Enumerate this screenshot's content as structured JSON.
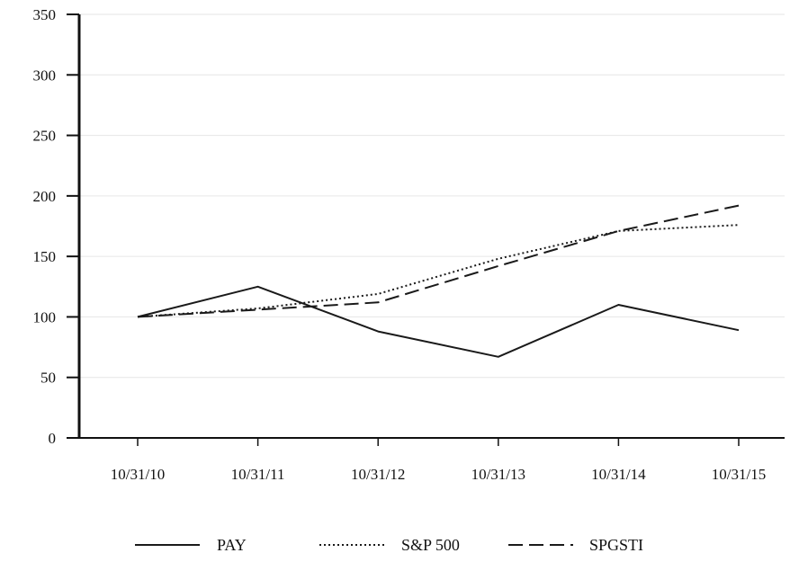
{
  "chart_data": {
    "type": "line",
    "categories": [
      "10/31/10",
      "10/31/11",
      "10/31/12",
      "10/31/13",
      "10/31/14",
      "10/31/15"
    ],
    "series": [
      {
        "name": "PAY",
        "values": [
          100,
          125,
          88,
          67,
          110,
          89
        ],
        "style": "solid"
      },
      {
        "name": "S&P 500",
        "values": [
          100,
          107,
          119,
          148,
          171,
          176
        ],
        "style": "dotted"
      },
      {
        "name": "SPGSTI",
        "values": [
          100,
          106,
          112,
          142,
          171,
          192
        ],
        "style": "dashed"
      }
    ],
    "ylim": [
      0,
      350
    ],
    "yticks": [
      0,
      50,
      100,
      150,
      200,
      250,
      300,
      350
    ],
    "title": "",
    "xlabel": "",
    "ylabel": "",
    "grid": "horizontal",
    "legend_position": "bottom-center",
    "colors": {
      "line": "#1a1a1a",
      "grid": "#e6e6e6",
      "axis": "#111111"
    }
  }
}
